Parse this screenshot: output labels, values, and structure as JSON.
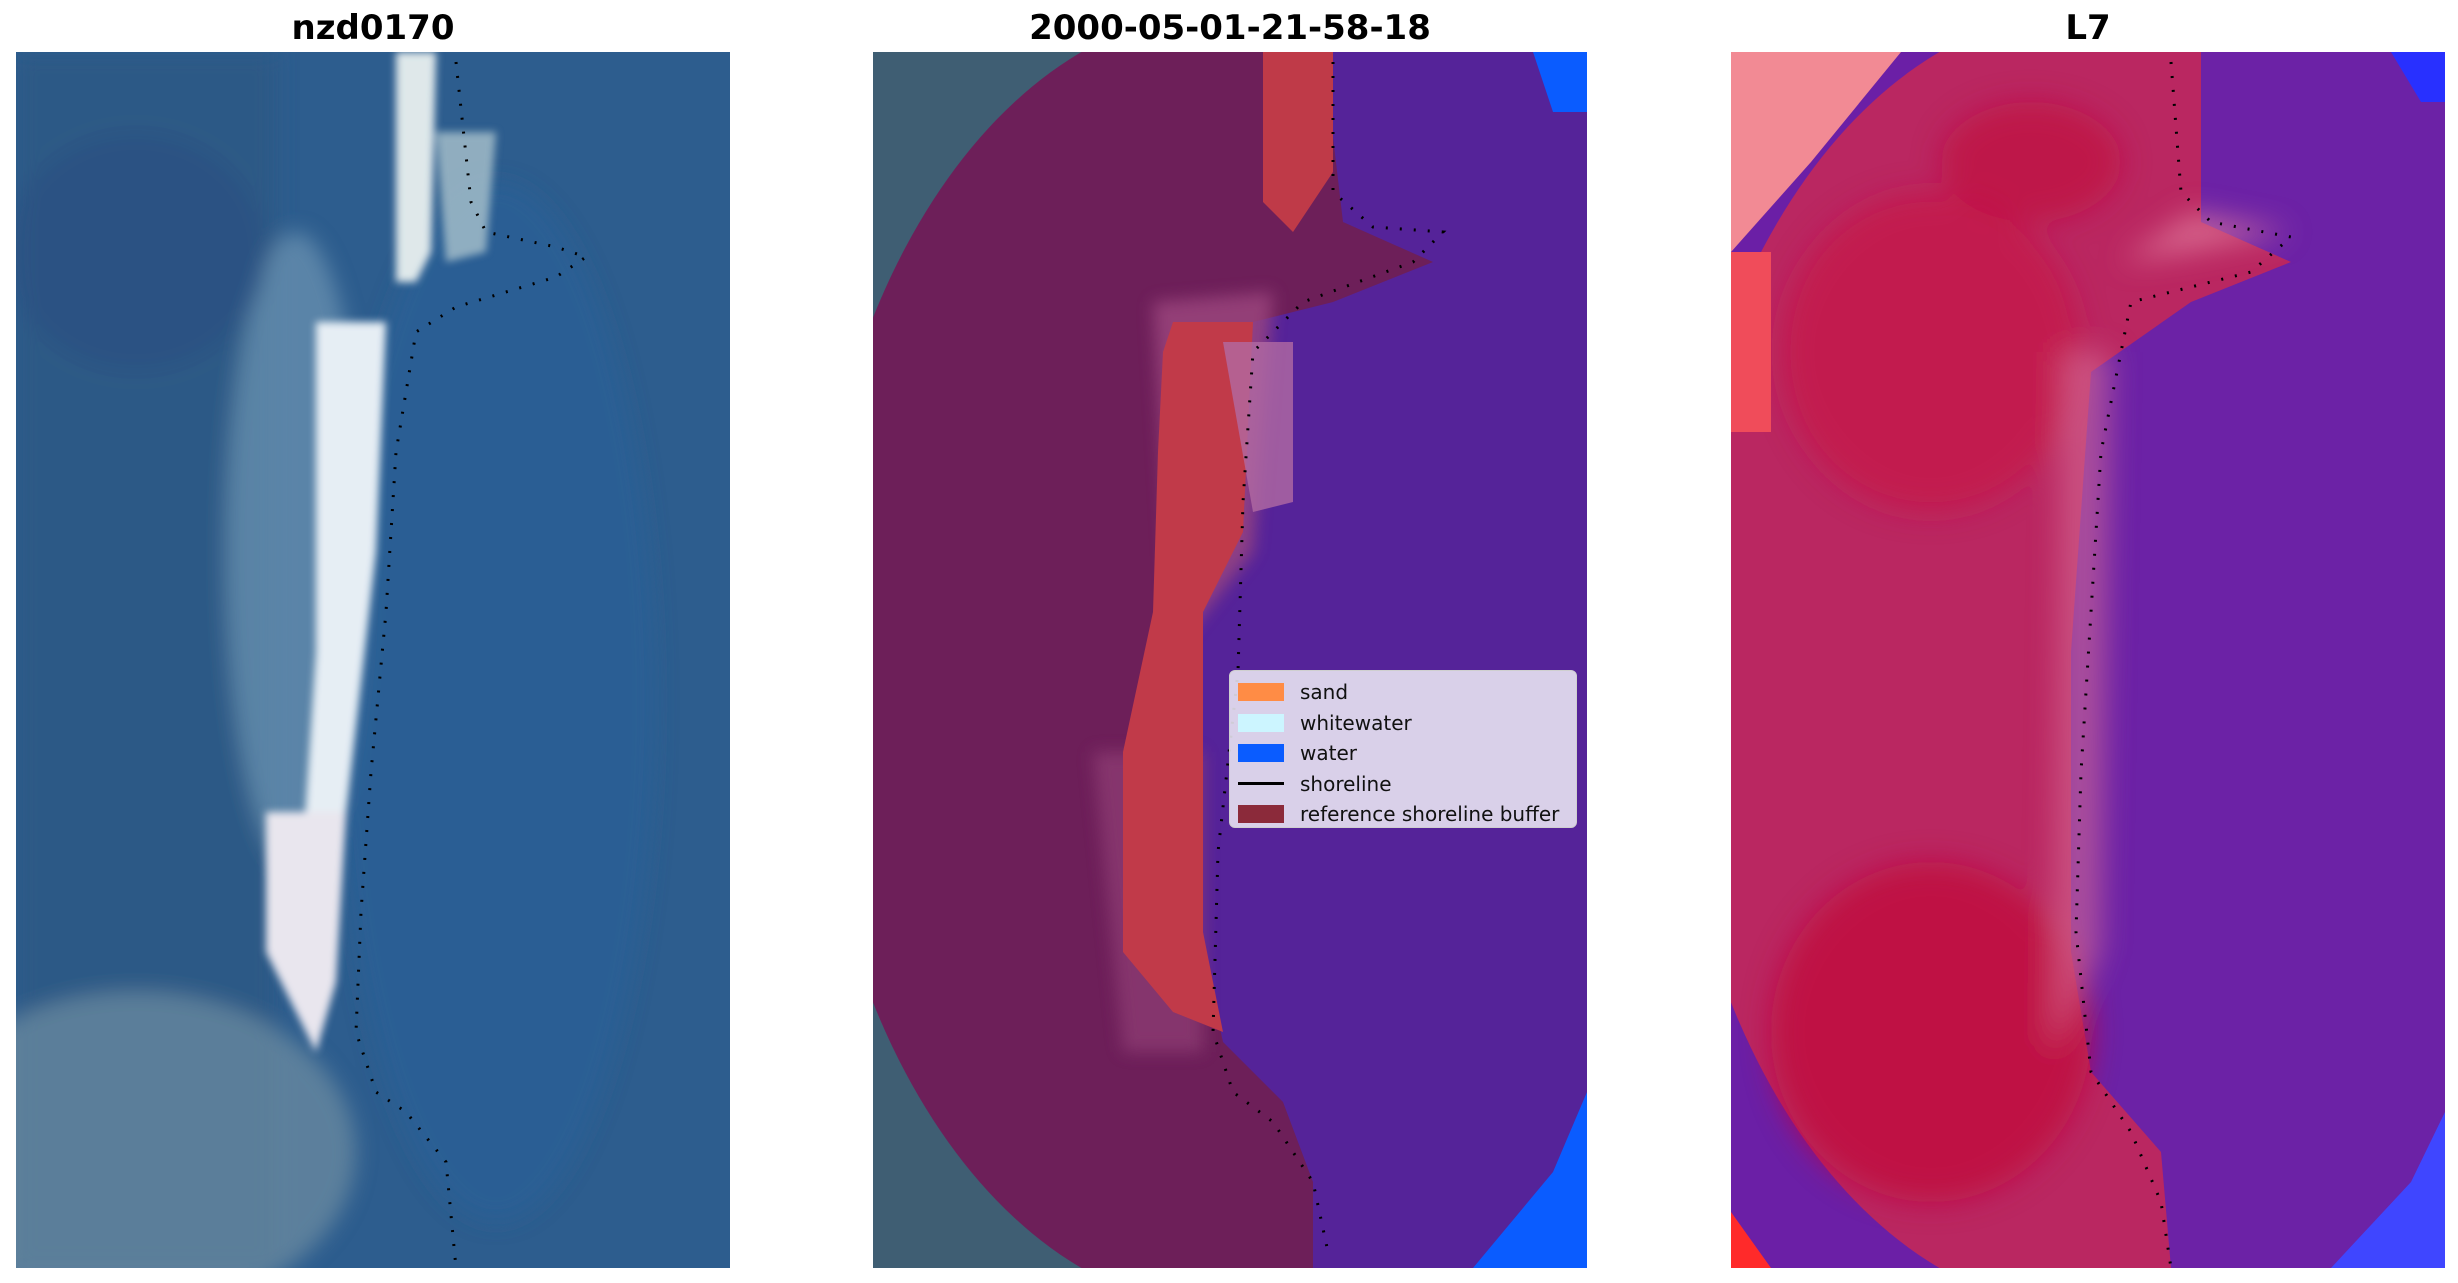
{
  "panels": [
    {
      "title": "nzd0170",
      "kind": "rgb"
    },
    {
      "title": "2000-05-01-21-58-18",
      "kind": "classified"
    },
    {
      "title": "L7",
      "kind": "index"
    }
  ],
  "legend": {
    "items": [
      {
        "label": "sand",
        "color": "#ff8c45",
        "type": "patch"
      },
      {
        "label": "whitewater",
        "color": "#ccf5ff",
        "type": "patch"
      },
      {
        "label": "water",
        "color": "#0a5cff",
        "type": "patch"
      },
      {
        "label": "shoreline",
        "color": "#000000",
        "type": "line"
      },
      {
        "label": "reference shoreline buffer",
        "color": "#8b2a3a",
        "type": "patch"
      }
    ]
  },
  "colors": {
    "ocean_blue": "#2b5c8f",
    "surf_white": "#e8eef2",
    "land_purple": "#6e1f5a",
    "water_purple": "#55249a",
    "sand_red": "#c03a49",
    "index_red": "#c2234e",
    "index_violet": "#6b1fa6"
  }
}
